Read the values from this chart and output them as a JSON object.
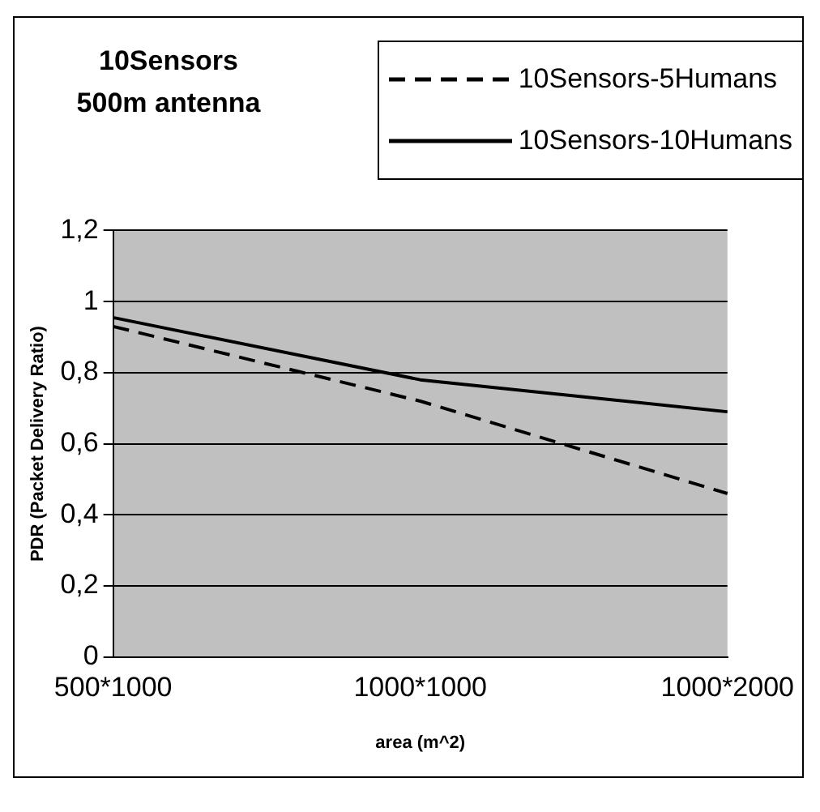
{
  "chart_data": {
    "type": "line",
    "title": "10Sensors\n500m antenna",
    "xlabel": "area (m^2)",
    "ylabel": "PDR (Packet Delivery Ratio)",
    "categories": [
      "500*1000",
      "1000*1000",
      "1000*2000"
    ],
    "series": [
      {
        "name": "10Sensors-5Humans",
        "color": "#000000",
        "values": [
          0.93,
          0.72,
          0.46
        ],
        "line_style": "dashed"
      },
      {
        "name": "10Sensors-10Humans",
        "color": "#000000",
        "values": [
          0.955,
          0.78,
          0.69
        ],
        "line_style": "solid"
      }
    ],
    "ylim": [
      0,
      1.2
    ],
    "yticks": [
      0,
      {
        "value": 0.2,
        "label": "0,2"
      },
      {
        "value": 0.4,
        "label": "0,4"
      },
      {
        "value": 0.6,
        "label": "0,6"
      },
      {
        "value": 0.8,
        "label": "0,8"
      },
      1,
      {
        "value": 1.2,
        "label": "1,2"
      }
    ],
    "grid": "y",
    "legend": "top right",
    "marker": "none"
  }
}
